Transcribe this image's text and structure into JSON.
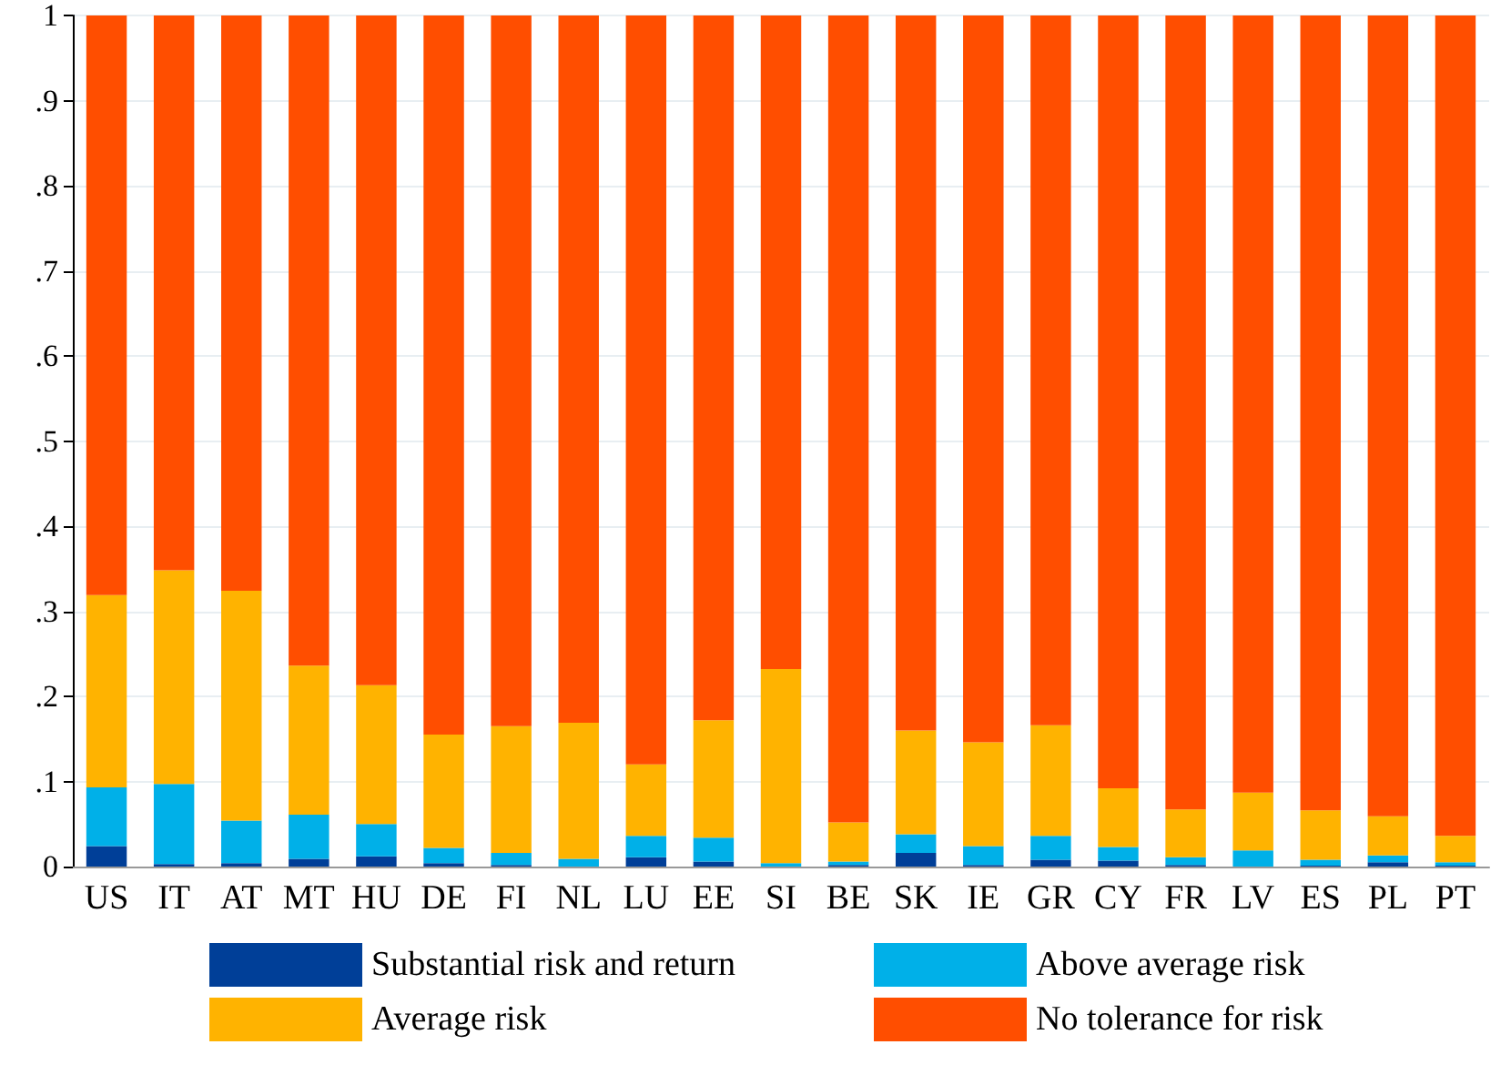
{
  "chart_data": {
    "type": "bar",
    "stacked": true,
    "categories": [
      "US",
      "IT",
      "AT",
      "MT",
      "HU",
      "DE",
      "FI",
      "NL",
      "LU",
      "EE",
      "SI",
      "BE",
      "SK",
      "IE",
      "GR",
      "CY",
      "FR",
      "LV",
      "ES",
      "PL",
      "PT"
    ],
    "series": [
      {
        "name": "Substantial risk and return",
        "color": "#003f98",
        "values": [
          0.024,
          0.003,
          0.004,
          0.009,
          0.012,
          0.004,
          0.002,
          0,
          0.011,
          0.006,
          0,
          0.002,
          0.016,
          0.002,
          0.008,
          0.007,
          0.002,
          0,
          0.001,
          0.005,
          0.001
        ]
      },
      {
        "name": "Above average risk",
        "color": "#00b0e8",
        "values": [
          0.069,
          0.094,
          0.05,
          0.052,
          0.038,
          0.018,
          0.014,
          0.009,
          0.025,
          0.028,
          0.004,
          0.004,
          0.022,
          0.022,
          0.028,
          0.016,
          0.009,
          0.019,
          0.007,
          0.008,
          0.004
        ]
      },
      {
        "name": "Average risk",
        "color": "#ffb300",
        "values": [
          0.226,
          0.251,
          0.27,
          0.175,
          0.163,
          0.133,
          0.149,
          0.16,
          0.084,
          0.138,
          0.228,
          0.046,
          0.122,
          0.122,
          0.13,
          0.069,
          0.056,
          0.068,
          0.058,
          0.046,
          0.031
        ]
      },
      {
        "name": "No tolerance for risk",
        "color": "#ff4e00",
        "values": [
          0.681,
          0.652,
          0.676,
          0.764,
          0.787,
          0.845,
          0.835,
          0.831,
          0.88,
          0.828,
          0.768,
          0.948,
          0.84,
          0.854,
          0.834,
          0.908,
          0.933,
          0.913,
          0.934,
          0.941,
          0.964
        ]
      }
    ],
    "ylim": [
      0,
      1
    ],
    "yticks": [
      0,
      {
        "value": 0.1,
        "label": ".1"
      },
      {
        "value": 0.2,
        "label": ".2"
      },
      {
        "value": 0.3,
        "label": ".3"
      },
      {
        "value": 0.4,
        "label": ".4"
      },
      {
        "value": 0.5,
        "label": ".5"
      },
      {
        "value": 0.6,
        "label": ".6"
      },
      {
        "value": 0.7,
        "label": ".7"
      },
      {
        "value": 0.8,
        "label": ".8"
      },
      {
        "value": 0.9,
        "label": ".9"
      },
      1
    ],
    "grid": "y",
    "legend": "bottom"
  }
}
